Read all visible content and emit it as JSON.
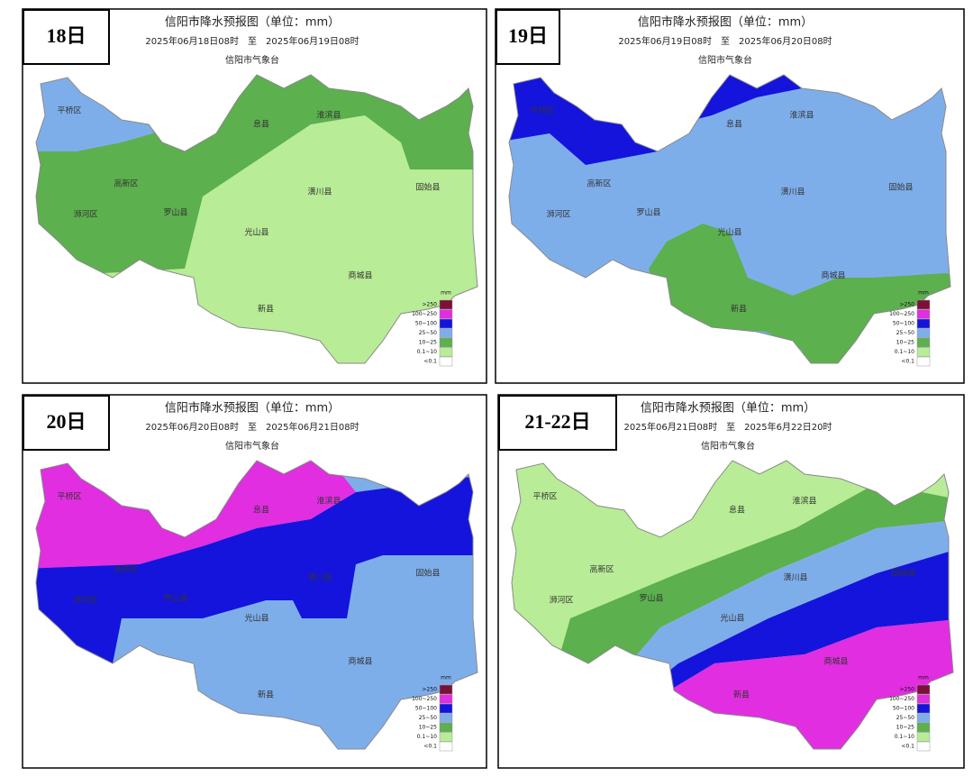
{
  "panels": [
    {
      "day_label": "18日",
      "title": "信阳市降水预报图（单位：mm）",
      "period": "2025年06月18日08时　至　2025年06月19日08时",
      "issuer": "信阳市气象台"
    },
    {
      "day_label": "19日",
      "title": "信阳市降水预报图（单位：mm）",
      "period": "2025年06月19日08时　至　2025年06月20日08时",
      "issuer": "信阳市气象台"
    },
    {
      "day_label": "20日",
      "title": "信阳市降水预报图（单位：mm）",
      "period": "2025年06月20日08时　至　2025年06月21日08时",
      "issuer": "信阳市气象台"
    },
    {
      "day_label": "21-22日",
      "title": "信阳市降水预报图（单位：mm）",
      "period": "2025年06月21日08时　至　2025年6月22日20时",
      "issuer": "信阳市气象台"
    }
  ],
  "county_labels": [
    "平桥区",
    "息县",
    "淮滨县",
    "固始县",
    "潢川县",
    "光山县",
    "商城县",
    "新县",
    "罗山县",
    "浉河区",
    "高新区"
  ],
  "legend": {
    "unit": "mm",
    "items": [
      {
        "label": ">250",
        "color": "#7b1038"
      },
      {
        "label": "100~250",
        "color": "#e02ee0"
      },
      {
        "label": "50~100",
        "color": "#1414dc"
      },
      {
        "label": "25~50",
        "color": "#7eaeea"
      },
      {
        "label": "10~25",
        "color": "#5cb04e"
      },
      {
        "label": "0.1~10",
        "color": "#b8ec96"
      },
      {
        "label": "<0.1",
        "color": "#ffffff"
      }
    ]
  }
}
